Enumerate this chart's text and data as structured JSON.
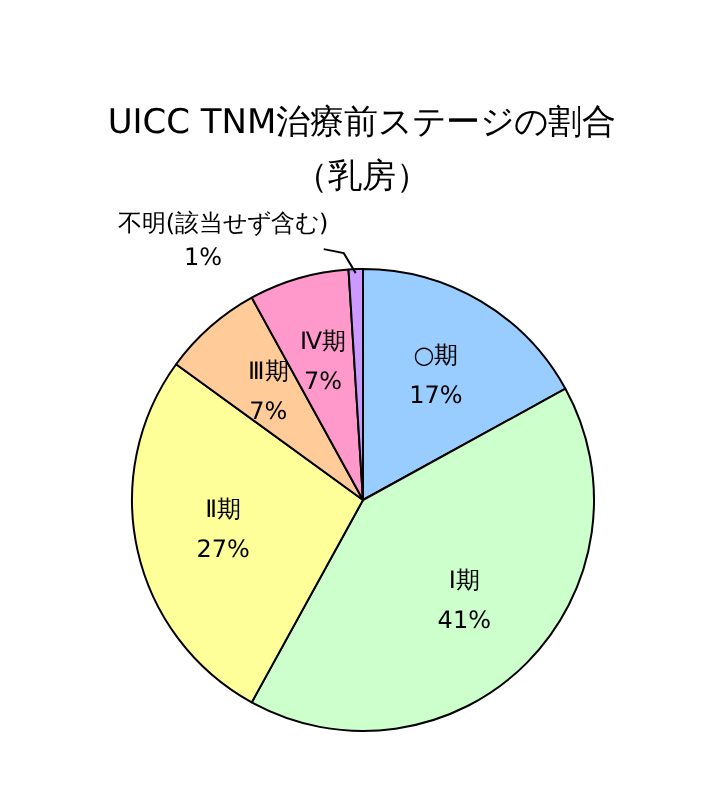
{
  "chart_data": {
    "type": "pie",
    "title": "UICC TNM治療前ステージの割合",
    "subtitle": "（乳房）",
    "categories": [
      "○期",
      "Ⅰ期",
      "Ⅱ期",
      "Ⅲ期",
      "Ⅳ期",
      "不明(該当せず含む)"
    ],
    "values": [
      17,
      41,
      27,
      7,
      7,
      1
    ],
    "value_labels": [
      "17%",
      "41%",
      "27%",
      "7%",
      "7%",
      "1%"
    ],
    "colors": [
      "#99ccff",
      "#ccffcc",
      "#ffff99",
      "#ffcc99",
      "#ff99cc",
      "#cc99ff"
    ],
    "legend": false
  }
}
